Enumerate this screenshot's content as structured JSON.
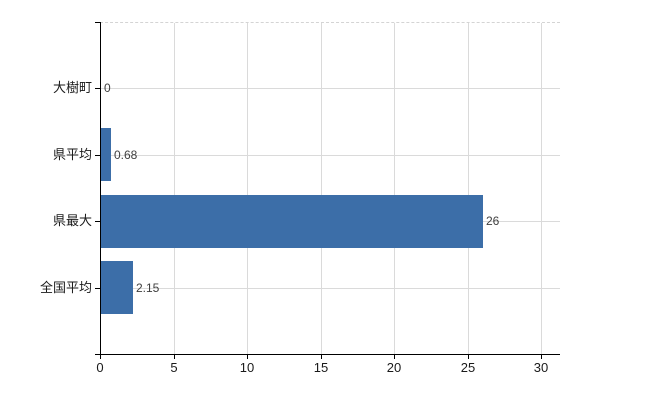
{
  "chart_data": {
    "type": "bar",
    "orientation": "horizontal",
    "title": "",
    "xlabel": "",
    "ylabel": "",
    "categories": [
      "大樹町",
      "県平均",
      "県最大",
      "全国平均"
    ],
    "values": [
      0,
      0.68,
      26,
      2.15
    ],
    "value_labels": [
      "0",
      "0.68",
      "26",
      "2.15"
    ],
    "xticks": [
      0,
      5,
      10,
      15,
      20,
      25,
      30
    ],
    "xtick_labels": [
      "0",
      "5",
      "10",
      "15",
      "20",
      "25",
      "30"
    ],
    "xlim": [
      0,
      31.3
    ],
    "grid": true,
    "legend_position": "none",
    "colors": {
      "bar": "#3c6ea8",
      "grid": "#dadada",
      "axis": "#000000",
      "value_label": "#3f3f3f",
      "tick_label": "#1a1a1a",
      "background": "#ffffff"
    }
  }
}
